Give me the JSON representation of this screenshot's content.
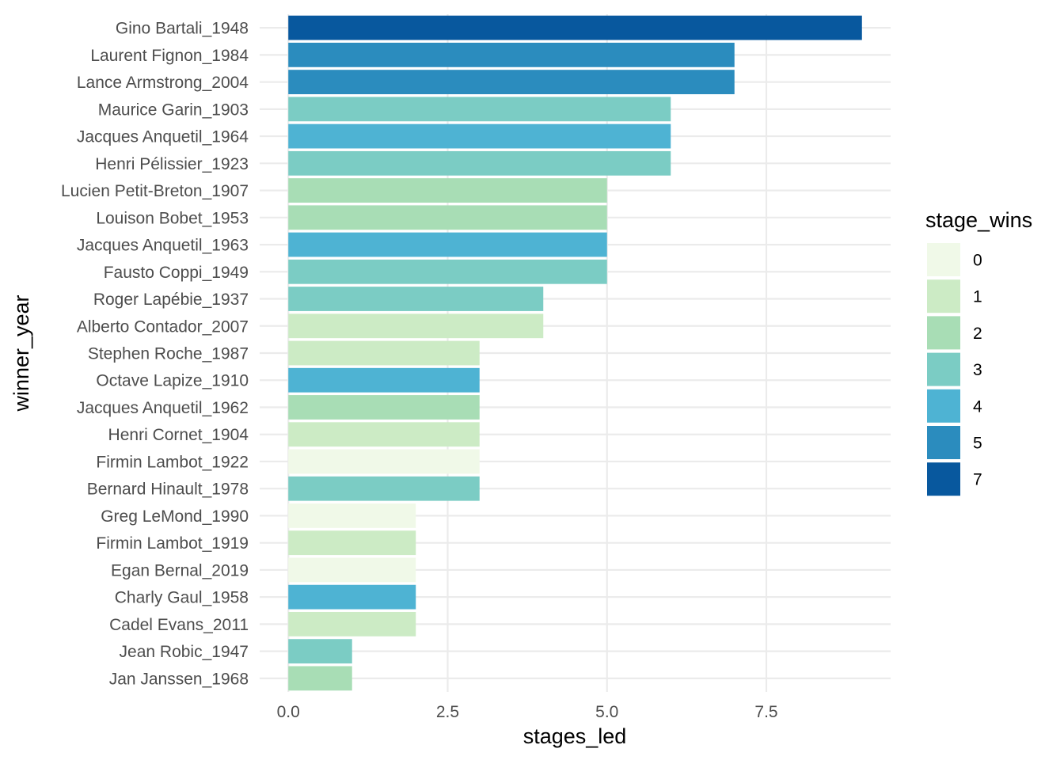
{
  "chart_data": {
    "type": "bar",
    "orientation": "horizontal",
    "xlabel": "stages_led",
    "ylabel": "winner_year",
    "xlim": [
      -0.45,
      9.45
    ],
    "xticks": [
      0.0,
      2.5,
      5.0,
      7.5
    ],
    "xtick_labels": [
      "0.0",
      "2.5",
      "5.0",
      "7.5"
    ],
    "grid": true,
    "categories": [
      "Gino Bartali_1948",
      "Laurent Fignon_1984",
      "Lance Armstrong_2004",
      "Maurice Garin_1903",
      "Jacques Anquetil_1964",
      "Henri Pélissier_1923",
      "Lucien Petit-Breton_1907",
      "Louison Bobet_1953",
      "Jacques Anquetil_1963",
      "Fausto Coppi_1949",
      "Roger Lapébie_1937",
      "Alberto Contador_2007",
      "Stephen Roche_1987",
      "Octave Lapize_1910",
      "Jacques Anquetil_1962",
      "Henri Cornet_1904",
      "Firmin Lambot_1922",
      "Bernard Hinault_1978",
      "Greg LeMond_1990",
      "Firmin Lambot_1919",
      "Egan Bernal_2019",
      "Charly Gaul_1958",
      "Cadel Evans_2011",
      "Jean Robic_1947",
      "Jan Janssen_1968"
    ],
    "values": [
      9,
      7,
      7,
      6,
      6,
      6,
      5,
      5,
      5,
      5,
      4,
      4,
      3,
      3,
      3,
      3,
      3,
      3,
      2,
      2,
      2,
      2,
      2,
      1,
      1
    ],
    "fill_values": [
      7,
      5,
      5,
      3,
      4,
      3,
      2,
      2,
      4,
      3,
      3,
      1,
      1,
      4,
      2,
      1,
      0,
      3,
      0,
      1,
      0,
      4,
      1,
      3,
      2
    ],
    "legend": {
      "title": "stage_wins",
      "position": "right",
      "entries": [
        {
          "label": "0",
          "color": "#f0f9e8"
        },
        {
          "label": "1",
          "color": "#ccebc5"
        },
        {
          "label": "2",
          "color": "#a8ddb5"
        },
        {
          "label": "3",
          "color": "#7bccc4"
        },
        {
          "label": "4",
          "color": "#4eb3d3"
        },
        {
          "label": "5",
          "color": "#2b8cbe"
        },
        {
          "label": "7",
          "color": "#08589e"
        }
      ]
    }
  }
}
